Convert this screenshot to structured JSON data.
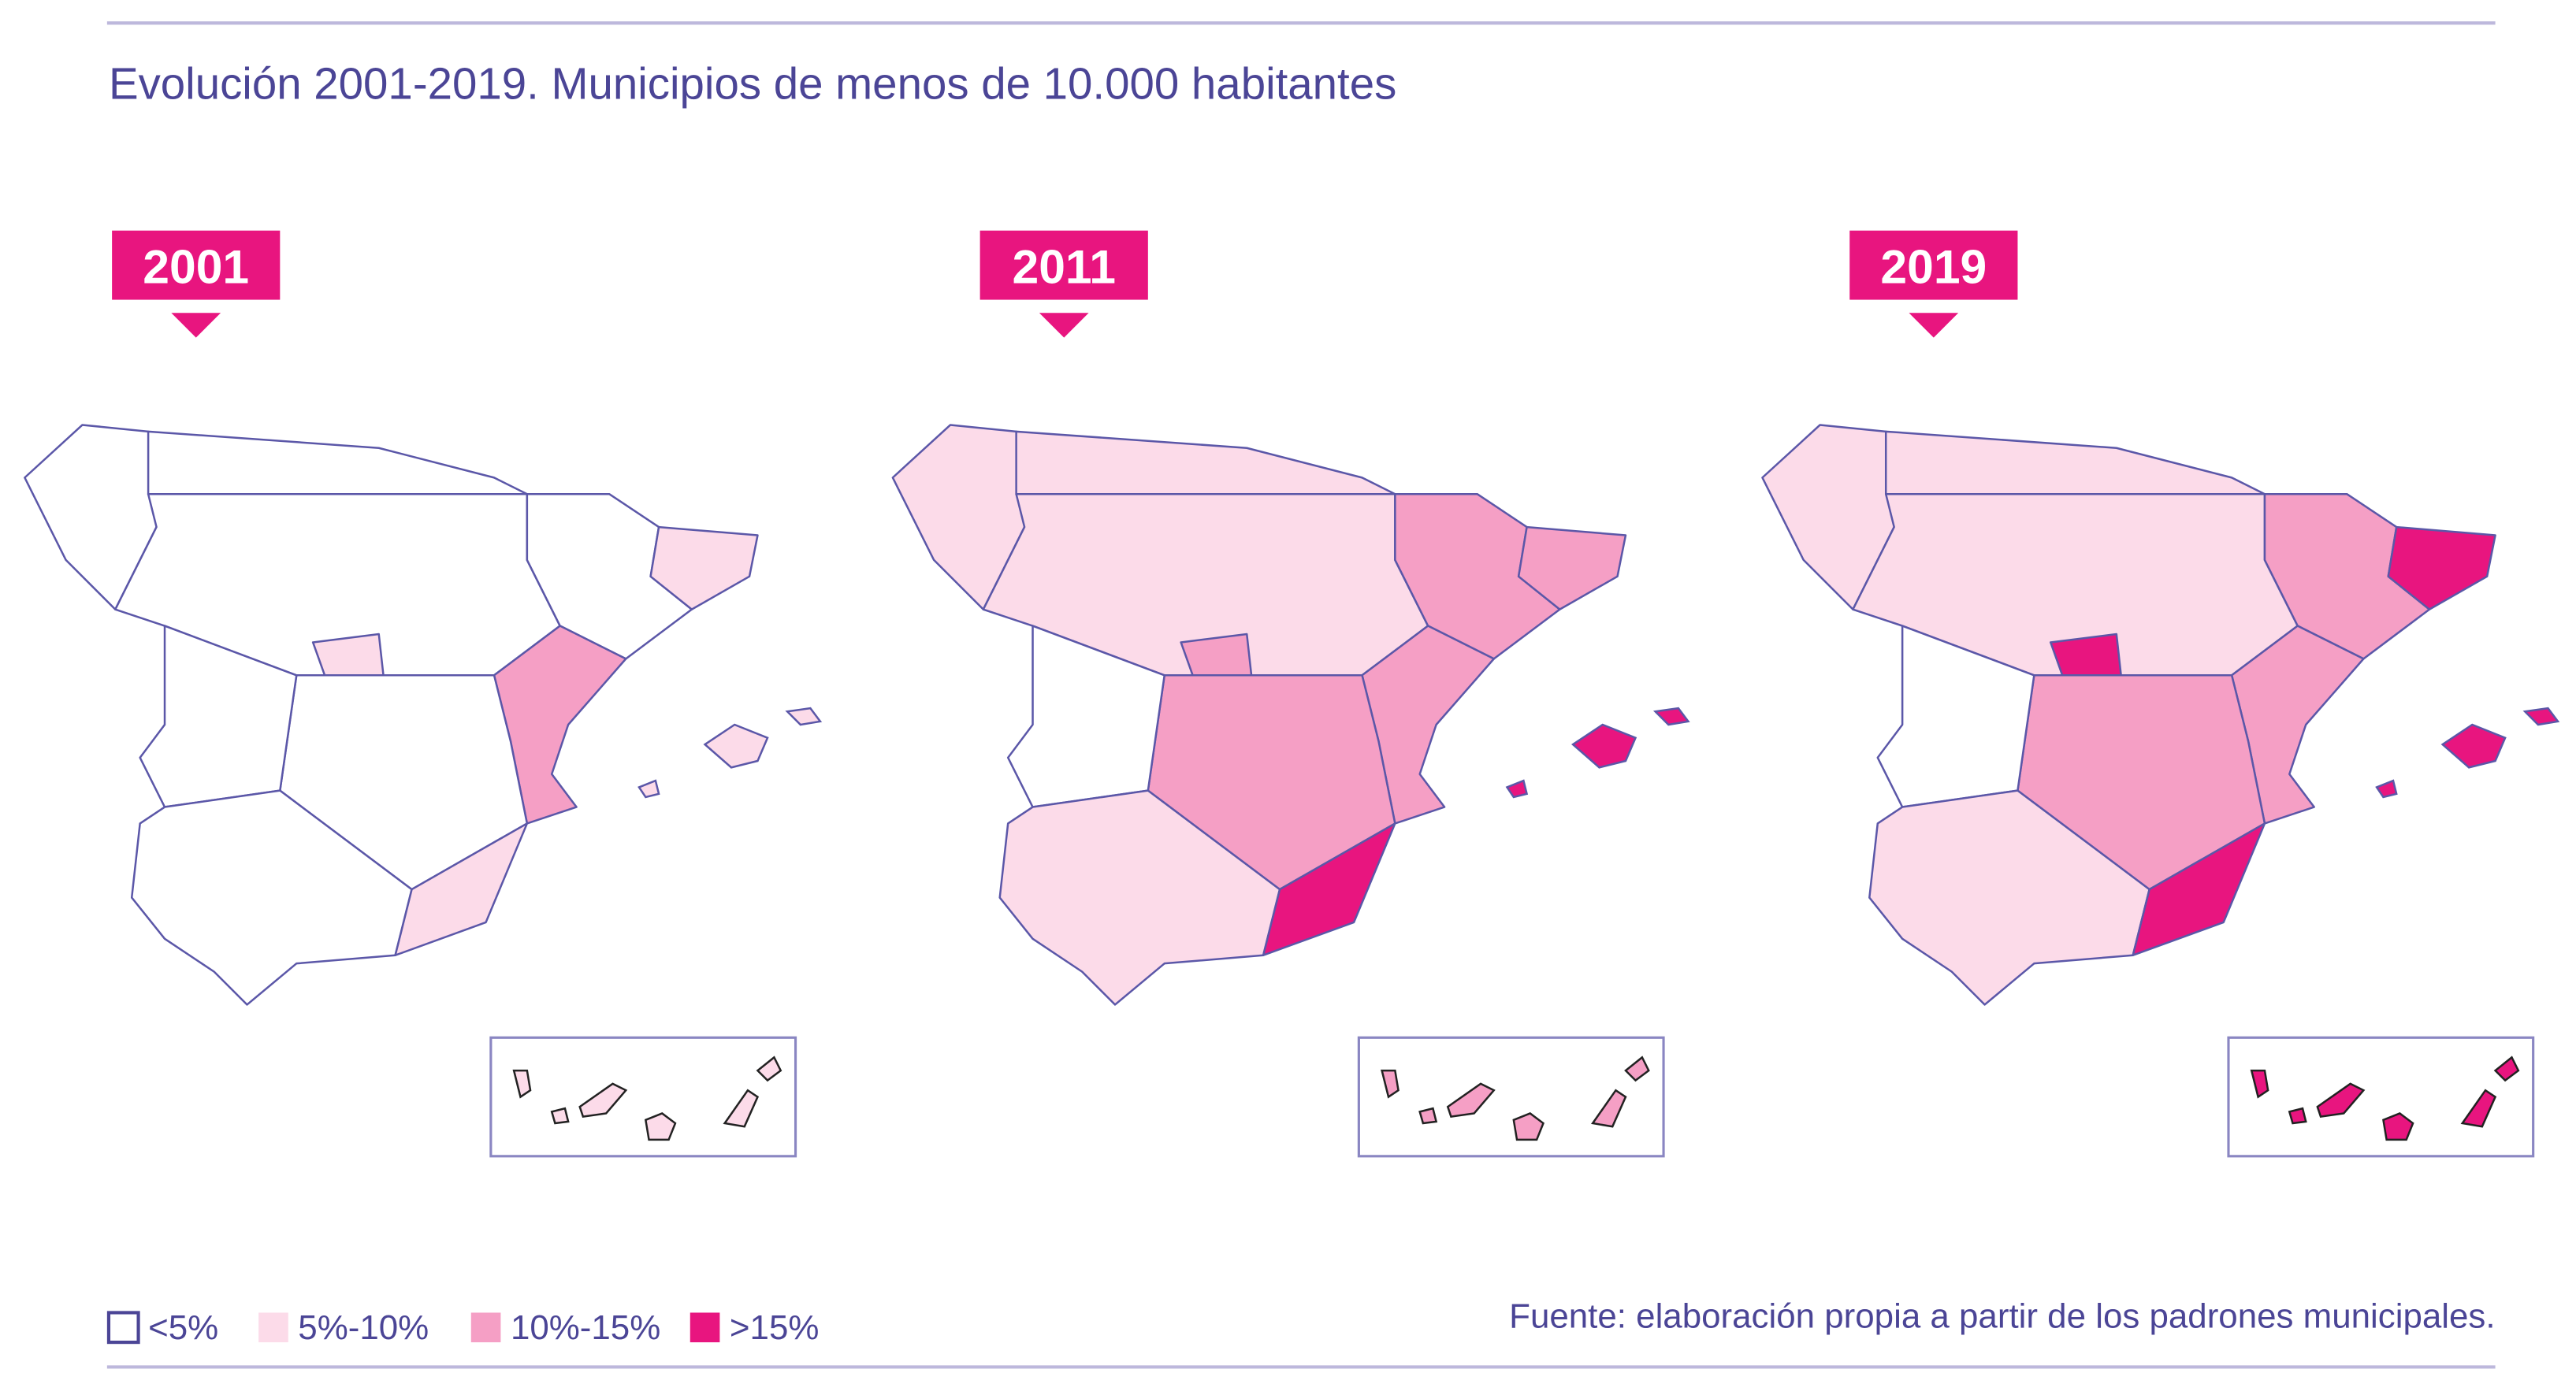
{
  "header": {
    "title": "Evolución 2001-2019. Municipios de menos de 10.000 habitantes"
  },
  "maps": [
    {
      "label": "2001"
    },
    {
      "label": "2011"
    },
    {
      "label": "2019"
    }
  ],
  "legend": [
    {
      "label": "<5%",
      "color": "#ffffff"
    },
    {
      "label": "5%-10%",
      "color": "#fcdbe9"
    },
    {
      "label": "10%-15%",
      "color": "#f59fc5"
    },
    {
      "label": ">15%",
      "color": "#e8157f"
    }
  ],
  "source": "Fuente: elaboración propia a partir de los padrones municipales."
}
